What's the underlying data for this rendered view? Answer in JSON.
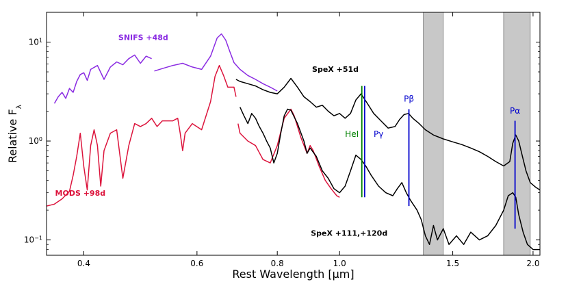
{
  "chart_data": {
    "type": "line",
    "xscale": "log",
    "yscale": "log",
    "xlim": [
      0.35,
      2.05
    ],
    "ylim": [
      0.07,
      20
    ],
    "xlabel": "Rest Wavelength [μm]",
    "ylabel": "Relative F",
    "ylabel_sub": "λ",
    "x_ticks": [
      {
        "value": 0.4,
        "label": "0.4"
      },
      {
        "value": 0.6,
        "label": "0.6"
      },
      {
        "value": 0.8,
        "label": "0.8"
      },
      {
        "value": 1.0,
        "label": "1.0"
      },
      {
        "value": 1.5,
        "label": "1.5"
      },
      {
        "value": 2.0,
        "label": "2.0"
      }
    ],
    "y_ticks": [
      {
        "value": 0.1,
        "base": "10",
        "exp": "−1"
      },
      {
        "value": 1,
        "base": "10",
        "exp": "0"
      },
      {
        "value": 10,
        "base": "10",
        "exp": "1"
      }
    ],
    "shaded_regions": [
      [
        1.35,
        1.45
      ],
      [
        1.8,
        1.98
      ]
    ],
    "series": [
      {
        "name": "SNIFS +48d",
        "color": "#8a2be2",
        "label_x": 0.495,
        "label_y": 10.5,
        "points": [
          [
            0.36,
            2.4
          ],
          [
            0.365,
            2.8
          ],
          [
            0.37,
            3.1
          ],
          [
            0.375,
            2.7
          ],
          [
            0.38,
            3.4
          ],
          [
            0.385,
            3.1
          ],
          [
            0.39,
            4.0
          ],
          [
            0.395,
            4.7
          ],
          [
            0.4,
            4.9
          ],
          [
            0.405,
            4.1
          ],
          [
            0.41,
            5.3
          ],
          [
            0.42,
            5.8
          ],
          [
            0.43,
            4.2
          ],
          [
            0.44,
            5.6
          ],
          [
            0.45,
            6.3
          ],
          [
            0.46,
            5.9
          ],
          [
            0.47,
            6.8
          ],
          [
            0.48,
            7.4
          ],
          [
            0.49,
            6.1
          ],
          [
            0.5,
            7.2
          ],
          [
            0.51,
            6.8
          ]
        ]
      },
      {
        "name": "SNIFS +48d",
        "color": "#8a2be2",
        "points": [
          [
            0.515,
            5.1
          ],
          [
            0.53,
            5.4
          ],
          [
            0.55,
            5.8
          ],
          [
            0.57,
            6.1
          ],
          [
            0.59,
            5.6
          ],
          [
            0.61,
            5.3
          ],
          [
            0.63,
            7.2
          ],
          [
            0.645,
            11.0
          ],
          [
            0.655,
            12.1
          ],
          [
            0.665,
            10.5
          ],
          [
            0.675,
            8.0
          ],
          [
            0.685,
            6.2
          ],
          [
            0.7,
            5.3
          ],
          [
            0.72,
            4.6
          ],
          [
            0.74,
            4.2
          ],
          [
            0.76,
            3.8
          ],
          [
            0.78,
            3.5
          ],
          [
            0.8,
            3.2
          ]
        ]
      },
      {
        "name": "MODS +98d",
        "color": "#dc143c",
        "label_x": 0.395,
        "label_y": 0.28,
        "points": [
          [
            0.35,
            0.22
          ],
          [
            0.36,
            0.23
          ],
          [
            0.37,
            0.26
          ],
          [
            0.38,
            0.31
          ],
          [
            0.385,
            0.45
          ],
          [
            0.39,
            0.7
          ],
          [
            0.395,
            1.2
          ],
          [
            0.4,
            0.55
          ],
          [
            0.405,
            0.32
          ],
          [
            0.41,
            0.9
          ],
          [
            0.415,
            1.3
          ],
          [
            0.42,
            0.9
          ],
          [
            0.425,
            0.35
          ],
          [
            0.43,
            0.8
          ],
          [
            0.44,
            1.2
          ],
          [
            0.45,
            1.3
          ],
          [
            0.46,
            0.42
          ],
          [
            0.47,
            0.9
          ],
          [
            0.48,
            1.5
          ],
          [
            0.49,
            1.4
          ],
          [
            0.5,
            1.5
          ],
          [
            0.51,
            1.7
          ],
          [
            0.52,
            1.4
          ],
          [
            0.53,
            1.6
          ],
          [
            0.55,
            1.6
          ],
          [
            0.56,
            1.7
          ],
          [
            0.565,
            1.2
          ],
          [
            0.57,
            0.8
          ],
          [
            0.575,
            1.2
          ],
          [
            0.59,
            1.5
          ],
          [
            0.61,
            1.3
          ],
          [
            0.63,
            2.5
          ],
          [
            0.64,
            4.5
          ],
          [
            0.65,
            5.8
          ],
          [
            0.66,
            4.6
          ],
          [
            0.67,
            3.5
          ],
          [
            0.685,
            3.5
          ],
          [
            0.69,
            2.8
          ]
        ]
      },
      {
        "name": "MODS +98d",
        "color": "#dc143c",
        "points": [
          [
            0.695,
            1.5
          ],
          [
            0.7,
            1.2
          ],
          [
            0.72,
            1.0
          ],
          [
            0.74,
            0.9
          ],
          [
            0.76,
            0.65
          ],
          [
            0.78,
            0.6
          ],
          [
            0.8,
            0.9
          ],
          [
            0.82,
            1.7
          ],
          [
            0.84,
            2.1
          ],
          [
            0.85,
            1.8
          ],
          [
            0.87,
            1.1
          ],
          [
            0.89,
            0.75
          ],
          [
            0.9,
            0.9
          ],
          [
            0.91,
            0.8
          ],
          [
            0.93,
            0.55
          ],
          [
            0.95,
            0.4
          ],
          [
            0.97,
            0.33
          ],
          [
            0.99,
            0.28
          ],
          [
            1.0,
            0.27
          ]
        ]
      },
      {
        "name": "SpeX +51d",
        "color": "#000000",
        "label_x": 0.985,
        "label_y": 5.0,
        "points": [
          [
            0.69,
            4.2
          ],
          [
            0.7,
            4.0
          ],
          [
            0.72,
            3.8
          ],
          [
            0.74,
            3.6
          ],
          [
            0.76,
            3.3
          ],
          [
            0.78,
            3.1
          ],
          [
            0.8,
            3.0
          ],
          [
            0.82,
            3.5
          ],
          [
            0.84,
            4.3
          ],
          [
            0.86,
            3.5
          ],
          [
            0.88,
            2.8
          ],
          [
            0.9,
            2.5
          ],
          [
            0.92,
            2.2
          ],
          [
            0.94,
            2.3
          ],
          [
            0.96,
            2.0
          ],
          [
            0.98,
            1.8
          ],
          [
            1.0,
            1.9
          ],
          [
            1.02,
            1.7
          ],
          [
            1.04,
            1.9
          ],
          [
            1.06,
            2.6
          ],
          [
            1.08,
            3.0
          ],
          [
            1.1,
            2.5
          ],
          [
            1.13,
            1.9
          ],
          [
            1.16,
            1.6
          ],
          [
            1.19,
            1.35
          ],
          [
            1.22,
            1.4
          ],
          [
            1.24,
            1.65
          ],
          [
            1.26,
            1.85
          ],
          [
            1.28,
            1.9
          ],
          [
            1.3,
            1.7
          ],
          [
            1.33,
            1.5
          ],
          [
            1.36,
            1.3
          ],
          [
            1.4,
            1.15
          ],
          [
            1.45,
            1.05
          ],
          [
            1.5,
            0.98
          ],
          [
            1.55,
            0.92
          ],
          [
            1.6,
            0.85
          ],
          [
            1.65,
            0.78
          ],
          [
            1.7,
            0.7
          ],
          [
            1.75,
            0.62
          ],
          [
            1.8,
            0.56
          ],
          [
            1.84,
            0.62
          ],
          [
            1.86,
            0.95
          ],
          [
            1.88,
            1.15
          ],
          [
            1.9,
            1.0
          ],
          [
            1.92,
            0.75
          ],
          [
            1.95,
            0.5
          ],
          [
            1.98,
            0.38
          ],
          [
            2.02,
            0.34
          ],
          [
            2.05,
            0.32
          ]
        ]
      },
      {
        "name": "SpeX +111,+120d",
        "color": "#000000",
        "label_x": 1.035,
        "label_y": 0.11,
        "points": [
          [
            0.7,
            2.2
          ],
          [
            0.71,
            1.8
          ],
          [
            0.72,
            1.5
          ],
          [
            0.73,
            1.9
          ],
          [
            0.74,
            1.7
          ],
          [
            0.75,
            1.4
          ],
          [
            0.76,
            1.2
          ],
          [
            0.77,
            1.0
          ],
          [
            0.78,
            0.85
          ],
          [
            0.79,
            0.6
          ],
          [
            0.8,
            0.75
          ],
          [
            0.81,
            1.2
          ],
          [
            0.82,
            1.8
          ],
          [
            0.83,
            2.1
          ],
          [
            0.84,
            2.05
          ],
          [
            0.86,
            1.5
          ],
          [
            0.88,
            1.0
          ],
          [
            0.89,
            0.75
          ],
          [
            0.9,
            0.85
          ],
          [
            0.92,
            0.7
          ],
          [
            0.94,
            0.5
          ],
          [
            0.96,
            0.42
          ],
          [
            0.98,
            0.33
          ],
          [
            1.0,
            0.3
          ],
          [
            1.02,
            0.35
          ],
          [
            1.04,
            0.5
          ],
          [
            1.06,
            0.72
          ],
          [
            1.08,
            0.65
          ],
          [
            1.1,
            0.55
          ],
          [
            1.12,
            0.45
          ],
          [
            1.15,
            0.35
          ],
          [
            1.18,
            0.3
          ],
          [
            1.21,
            0.28
          ],
          [
            1.23,
            0.33
          ],
          [
            1.25,
            0.38
          ],
          [
            1.27,
            0.3
          ],
          [
            1.29,
            0.25
          ],
          [
            1.32,
            0.2
          ],
          [
            1.34,
            0.16
          ],
          [
            1.36,
            0.11
          ],
          [
            1.38,
            0.09
          ],
          [
            1.4,
            0.14
          ],
          [
            1.42,
            0.1
          ],
          [
            1.45,
            0.13
          ],
          [
            1.48,
            0.09
          ],
          [
            1.52,
            0.11
          ],
          [
            1.56,
            0.09
          ],
          [
            1.6,
            0.12
          ],
          [
            1.65,
            0.1
          ],
          [
            1.7,
            0.11
          ],
          [
            1.75,
            0.14
          ],
          [
            1.8,
            0.2
          ],
          [
            1.83,
            0.28
          ],
          [
            1.86,
            0.3
          ],
          [
            1.88,
            0.27
          ],
          [
            1.9,
            0.18
          ],
          [
            1.93,
            0.12
          ],
          [
            1.96,
            0.09
          ],
          [
            2.0,
            0.08
          ],
          [
            2.05,
            0.08
          ]
        ]
      }
    ],
    "line_markers": [
      {
        "label": "HeI",
        "color": "#008000",
        "x": 1.083,
        "y_bottom": 0.27,
        "y_top": 3.6,
        "label_x": 1.045,
        "label_y": 1.1,
        "anchor": "middle"
      },
      {
        "label": "Pγ",
        "color": "#0000cd",
        "x": 1.094,
        "y_bottom": 0.27,
        "y_top": 3.6,
        "label_x": 1.15,
        "label_y": 1.1,
        "anchor": "middle"
      },
      {
        "label": "Pβ",
        "color": "#0000cd",
        "x": 1.282,
        "y_bottom": 0.22,
        "y_top": 2.1,
        "label_x": 1.282,
        "label_y": 2.5,
        "anchor": "middle"
      },
      {
        "label": "Pα",
        "color": "#0000cd",
        "x": 1.875,
        "y_bottom": 0.13,
        "y_top": 1.6,
        "label_x": 1.875,
        "label_y": 1.9,
        "anchor": "middle"
      }
    ]
  }
}
